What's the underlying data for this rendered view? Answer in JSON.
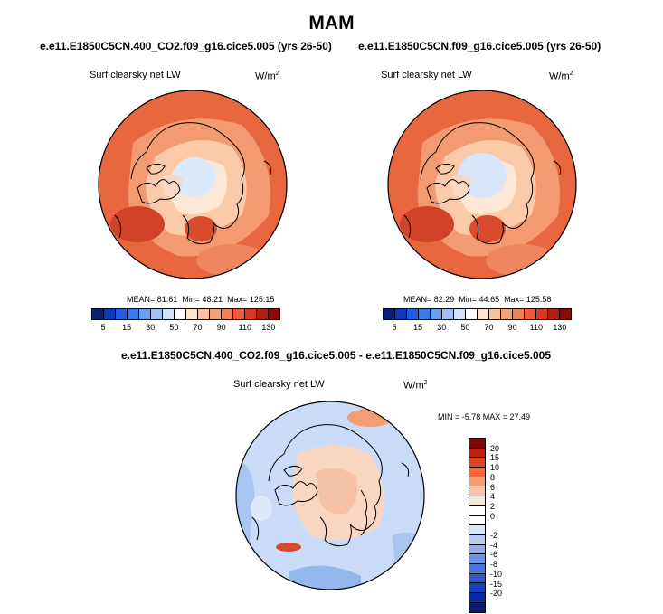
{
  "header": {
    "title": "MAM"
  },
  "panels": [
    {
      "subtitle": "e.e11.E1850C5CN.400_CO2.f09_g16.cice5.005 (yrs 26-50)",
      "variable": "Surf clearsky net LW",
      "units": "W/m",
      "units_sup": "2",
      "stats": {
        "mean": "MEAN=  81.61",
        "min": "Min=  48.21",
        "max": "Max=  125.15"
      }
    },
    {
      "subtitle": "e.e11.E1850C5CN.f09_g16.cice5.005 (yrs 26-50)",
      "variable": "Surf clearsky net LW",
      "units": "W/m",
      "units_sup": "2",
      "stats": {
        "mean": "MEAN=  82.29",
        "min": "Min=  44.65",
        "max": "Max=  125.58"
      }
    }
  ],
  "diff_panel": {
    "subtitle": "e.e11.E1850C5CN.400_CO2.f09_g16.cice5.005 - e.e11.E1850C5CN.f09_g16.cice5.005",
    "variable": "Surf clearsky net LW",
    "units": "W/m",
    "units_sup": "2",
    "minmax": "MIN =  -5.78 MAX =  27.49"
  },
  "colorbar_abs": {
    "colors": [
      "#08207a",
      "#0d3bb3",
      "#1f5ee0",
      "#3a7be8",
      "#6a9ef0",
      "#9ec2f5",
      "#cfe2fa",
      "#ffffff",
      "#fde3cc",
      "#fbc2a0",
      "#f6a078",
      "#f07e58",
      "#e95b3a",
      "#d63a22",
      "#b0200f",
      "#8b0a05"
    ],
    "labels": [
      "5",
      "15",
      "30",
      "50",
      "70",
      "90",
      "110",
      "130"
    ],
    "label_boundaries": [
      1,
      3,
      5,
      7,
      9,
      11,
      13,
      15
    ]
  },
  "colorbar_diff": {
    "colors": [
      "#7b0a05",
      "#c02312",
      "#e2431f",
      "#f2693f",
      "#f49a70",
      "#f9c4a7",
      "#fde6d5",
      "#ffffff",
      "#ffffff",
      "#d8e6f8",
      "#b5cdf3",
      "#8eb0ed",
      "#6b93e6",
      "#4a77dd",
      "#2d5cd2",
      "#1640c0",
      "#072a9e",
      "#051a70"
    ],
    "labels": [
      "20",
      "15",
      "10",
      "8",
      "6",
      "4",
      "2",
      "0",
      "-2",
      "-4",
      "-6",
      "-8",
      "-10",
      "-15",
      "-20"
    ],
    "label_boundaries": [
      1,
      2,
      3,
      4,
      5,
      6,
      7,
      8,
      10,
      11,
      12,
      13,
      14,
      15,
      16
    ]
  }
}
